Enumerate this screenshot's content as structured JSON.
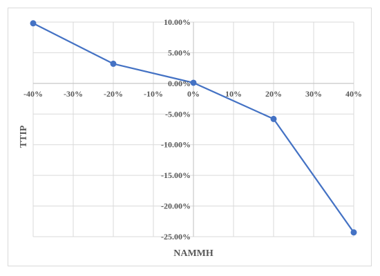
{
  "chart_data": {
    "type": "line",
    "title": "",
    "xlabel": "NAMMH",
    "ylabel": "TTIP",
    "x_ticks": [
      "-40%",
      "-30%",
      "-20%",
      "-10%",
      "0%",
      "10%",
      "20%",
      "30%",
      "40%"
    ],
    "y_ticks": [
      "10.00%",
      "5.00%",
      "0.00%",
      "-5.00%",
      "-10.00%",
      "-15.00%",
      "-20.00%",
      "-25.00%"
    ],
    "xlim": [
      -40,
      40
    ],
    "ylim": [
      -25,
      10
    ],
    "grid": true,
    "series": [
      {
        "x": [
          -40,
          -20,
          0,
          20,
          40
        ],
        "y": [
          9.8,
          3.2,
          0.1,
          -5.8,
          -24.3
        ],
        "color": "#4472c4"
      }
    ]
  }
}
